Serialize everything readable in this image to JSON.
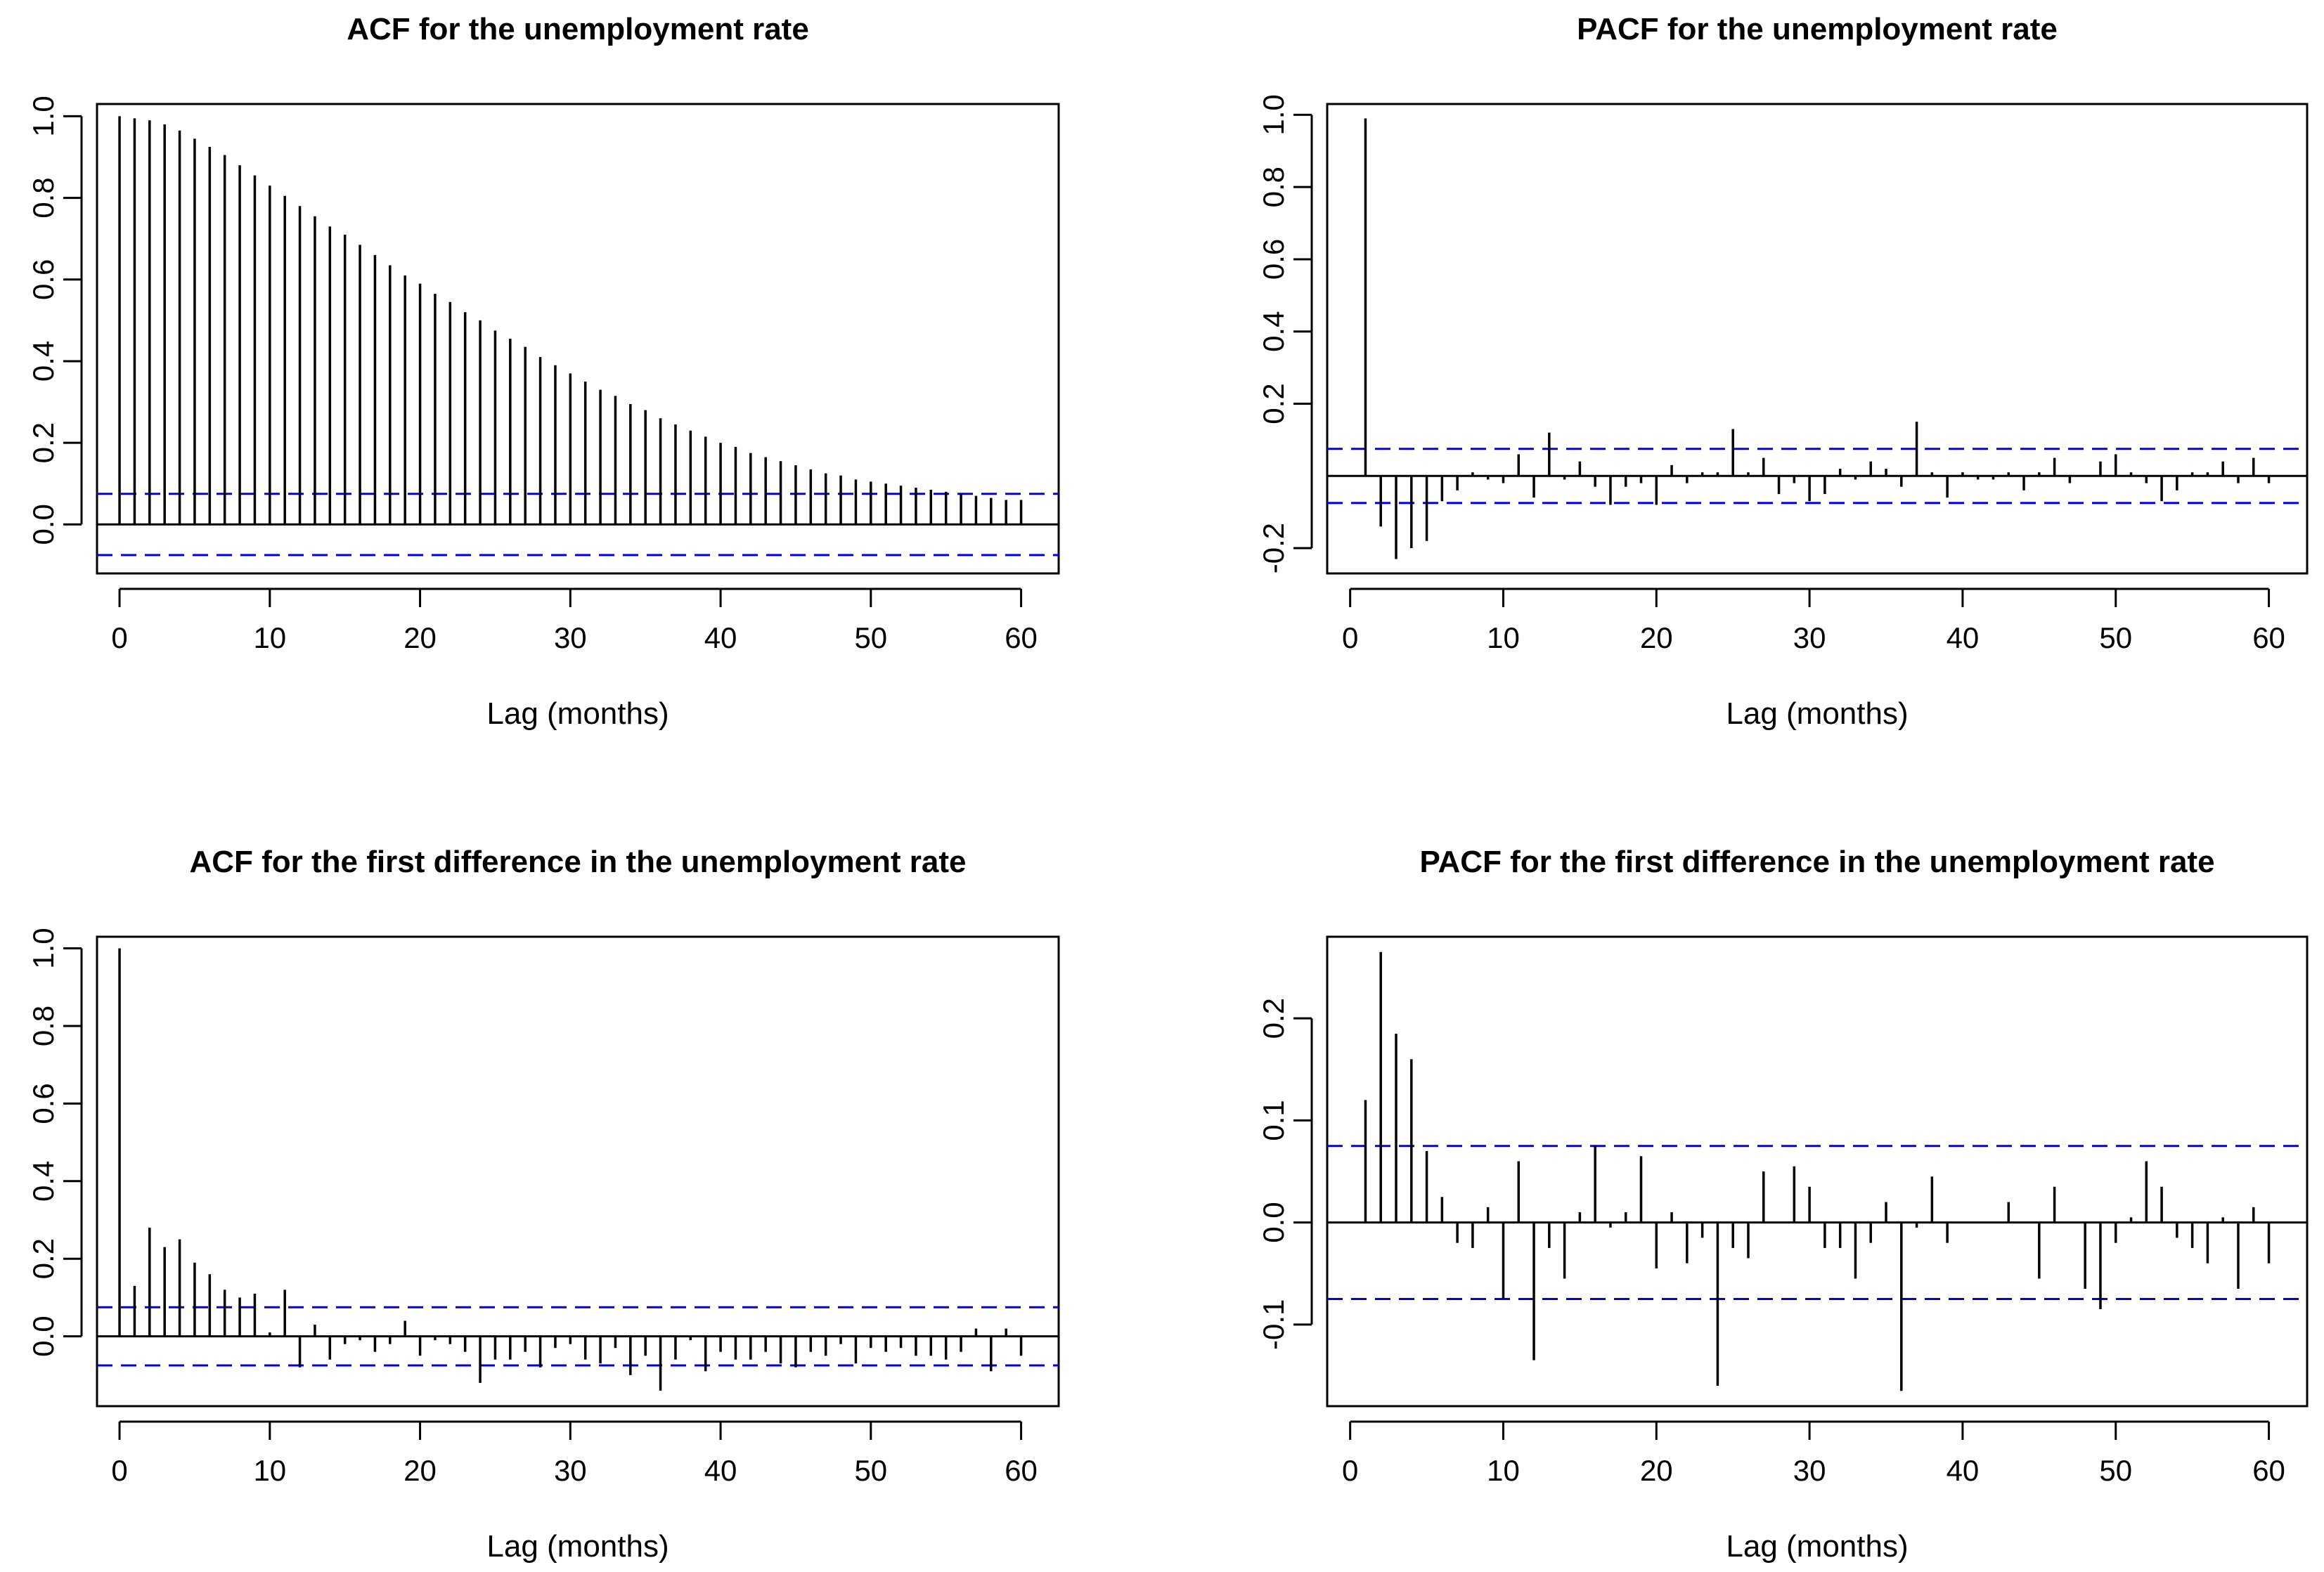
{
  "chart_data": [
    {
      "type": "bar",
      "title": "ACF for the unemployment rate",
      "xlabel": "Lag (months)",
      "ylabel": "",
      "xlim": [
        -1.5,
        62.5
      ],
      "ylim": [
        -0.12,
        1.03
      ],
      "x_ticks": [
        0,
        10,
        20,
        30,
        40,
        50,
        60
      ],
      "x_tick_labels": [
        "0",
        "10",
        "20",
        "30",
        "40",
        "50",
        "60"
      ],
      "y_ticks": [
        0.0,
        0.2,
        0.4,
        0.6,
        0.8,
        1.0
      ],
      "y_tick_labels": [
        "0.0",
        "0.2",
        "0.4",
        "0.6",
        "0.8",
        "1.0"
      ],
      "confidence_bound": 0.075,
      "lag_start": 0,
      "values": [
        1.0,
        0.995,
        0.99,
        0.98,
        0.965,
        0.945,
        0.925,
        0.905,
        0.88,
        0.855,
        0.83,
        0.805,
        0.78,
        0.755,
        0.73,
        0.71,
        0.685,
        0.66,
        0.635,
        0.61,
        0.59,
        0.565,
        0.545,
        0.52,
        0.5,
        0.475,
        0.455,
        0.435,
        0.41,
        0.39,
        0.37,
        0.35,
        0.33,
        0.315,
        0.295,
        0.28,
        0.26,
        0.245,
        0.23,
        0.215,
        0.2,
        0.19,
        0.175,
        0.165,
        0.155,
        0.145,
        0.135,
        0.125,
        0.12,
        0.11,
        0.105,
        0.1,
        0.095,
        0.09,
        0.085,
        0.08,
        0.075,
        0.07,
        0.065,
        0.06,
        0.06
      ]
    },
    {
      "type": "bar",
      "title": "PACF for the unemployment rate",
      "xlabel": "Lag (months)",
      "ylabel": "",
      "xlim": [
        -1.5,
        62.5
      ],
      "ylim": [
        -0.27,
        1.03
      ],
      "x_ticks": [
        0,
        10,
        20,
        30,
        40,
        50,
        60
      ],
      "x_tick_labels": [
        "0",
        "10",
        "20",
        "30",
        "40",
        "50",
        "60"
      ],
      "y_ticks": [
        -0.2,
        0.2,
        0.4,
        0.6,
        0.8,
        1.0
      ],
      "y_tick_labels": [
        "-0.2",
        "0.2",
        "0.4",
        "0.6",
        "0.8",
        "1.0"
      ],
      "confidence_bound": 0.075,
      "lag_start": 1,
      "values": [
        0.99,
        -0.14,
        -0.23,
        -0.2,
        -0.18,
        -0.07,
        -0.04,
        0.01,
        -0.01,
        -0.02,
        0.06,
        -0.06,
        0.12,
        -0.01,
        0.04,
        -0.03,
        -0.08,
        -0.03,
        -0.02,
        -0.08,
        0.03,
        -0.02,
        0.01,
        0.01,
        0.13,
        0.01,
        0.05,
        -0.05,
        -0.02,
        -0.07,
        -0.05,
        0.02,
        -0.01,
        0.04,
        0.02,
        -0.03,
        0.15,
        0.01,
        -0.06,
        0.01,
        -0.01,
        -0.01,
        0.01,
        -0.04,
        0.01,
        0.05,
        -0.02,
        0.0,
        0.04,
        0.06,
        0.01,
        -0.02,
        -0.07,
        -0.04,
        0.01,
        0.01,
        0.04,
        -0.02,
        0.05,
        -0.02
      ]
    },
    {
      "type": "bar",
      "title": "ACF for the first difference in the unemployment rate",
      "xlabel": "Lag (months)",
      "ylabel": "",
      "xlim": [
        -1.5,
        62.5
      ],
      "ylim": [
        -0.18,
        1.03
      ],
      "x_ticks": [
        0,
        10,
        20,
        30,
        40,
        50,
        60
      ],
      "x_tick_labels": [
        "0",
        "10",
        "20",
        "30",
        "40",
        "50",
        "60"
      ],
      "y_ticks": [
        0.0,
        0.2,
        0.4,
        0.6,
        0.8,
        1.0
      ],
      "y_tick_labels": [
        "0.0",
        "0.2",
        "0.4",
        "0.6",
        "0.8",
        "1.0"
      ],
      "confidence_bound": 0.075,
      "lag_start": 0,
      "values": [
        1.0,
        0.13,
        0.28,
        0.23,
        0.25,
        0.19,
        0.16,
        0.12,
        0.1,
        0.11,
        0.01,
        0.12,
        -0.08,
        0.03,
        -0.06,
        -0.02,
        -0.01,
        -0.04,
        -0.02,
        0.04,
        -0.05,
        -0.01,
        -0.02,
        -0.04,
        -0.12,
        -0.06,
        -0.06,
        -0.04,
        -0.08,
        -0.03,
        -0.02,
        -0.06,
        -0.07,
        -0.03,
        -0.1,
        -0.05,
        -0.14,
        -0.06,
        -0.01,
        -0.09,
        -0.04,
        -0.06,
        -0.06,
        -0.04,
        -0.07,
        -0.08,
        -0.04,
        -0.05,
        -0.02,
        -0.07,
        -0.03,
        -0.04,
        -0.03,
        -0.05,
        -0.05,
        -0.06,
        -0.04,
        0.02,
        -0.09,
        0.02,
        -0.05
      ]
    },
    {
      "type": "bar",
      "title": "PACF for the first difference in the unemployment rate",
      "xlabel": "Lag (months)",
      "ylabel": "",
      "xlim": [
        -1.5,
        62.5
      ],
      "ylim": [
        -0.18,
        0.28
      ],
      "x_ticks": [
        0,
        10,
        20,
        30,
        40,
        50,
        60
      ],
      "x_tick_labels": [
        "0",
        "10",
        "20",
        "30",
        "40",
        "50",
        "60"
      ],
      "y_ticks": [
        -0.1,
        0.0,
        0.1,
        0.2
      ],
      "y_tick_labels": [
        "-0.1",
        "0.0",
        "0.1",
        "0.2"
      ],
      "confidence_bound": 0.075,
      "lag_start": 1,
      "values": [
        0.12,
        0.265,
        0.185,
        0.16,
        0.07,
        0.025,
        -0.02,
        -0.025,
        0.015,
        -0.075,
        0.06,
        -0.135,
        -0.025,
        -0.055,
        0.01,
        0.075,
        -0.005,
        0.01,
        0.065,
        -0.045,
        0.01,
        -0.04,
        -0.015,
        -0.16,
        -0.025,
        -0.035,
        0.05,
        0.0,
        0.055,
        0.035,
        -0.025,
        -0.025,
        -0.055,
        -0.02,
        0.02,
        -0.165,
        -0.005,
        0.045,
        -0.02,
        0.0,
        0.0,
        0.0,
        0.02,
        0.0,
        -0.055,
        0.035,
        0.0,
        -0.065,
        -0.085,
        -0.02,
        0.005,
        0.06,
        0.035,
        -0.015,
        -0.025,
        -0.04,
        0.005,
        -0.065,
        0.015,
        -0.04
      ]
    }
  ]
}
